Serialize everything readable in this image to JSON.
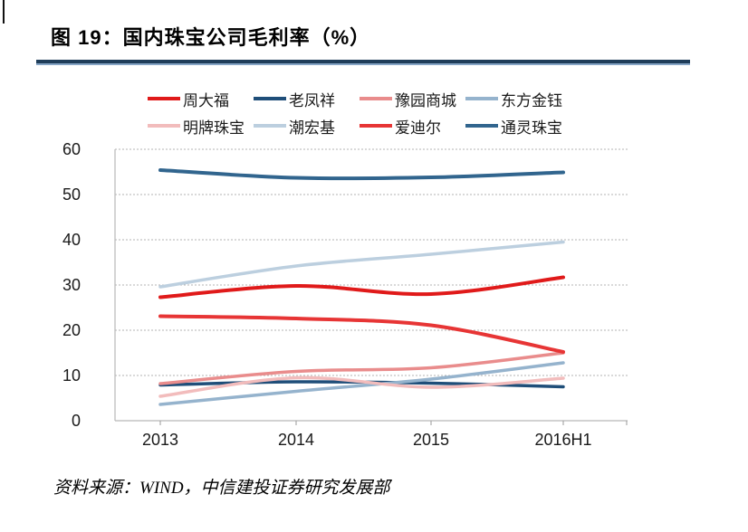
{
  "figure": {
    "title": "图 19：国内珠宝公司毛利率（%）",
    "source": "资料来源：WIND，中信建投证券研究发展部"
  },
  "colors": {
    "title_rule": "#1f3d5a",
    "title_rule_edge": "#86a5c6",
    "gridline": "#b3b3b3",
    "axis": "#b7b7b7",
    "tick": "#999999",
    "tick_label": "#1a1a1a"
  },
  "chart_data": {
    "type": "line",
    "smoothed": true,
    "title": "国内珠宝公司毛利率（%）",
    "categories": [
      "2013",
      "2014",
      "2015",
      "2016H1"
    ],
    "series": [
      {
        "id": "zhoudafu",
        "name": "周大福",
        "color": "#e01a1a",
        "width": 4,
        "values": [
          27.3,
          29.8,
          28.0,
          31.7
        ]
      },
      {
        "id": "laofengxiang",
        "name": "老凤祥",
        "color": "#1f4e79",
        "width": 3.5,
        "values": [
          7.9,
          8.6,
          8.3,
          7.5
        ]
      },
      {
        "id": "yuyuanshangcheng",
        "name": "豫园商城",
        "color": "#e98c8c",
        "width": 3.5,
        "values": [
          8.2,
          10.9,
          11.7,
          15.0
        ]
      },
      {
        "id": "dongfangjinyu",
        "name": "东方金钰",
        "color": "#95b3cd",
        "width": 3.5,
        "values": [
          3.6,
          6.5,
          9.2,
          12.8
        ]
      },
      {
        "id": "mingpaizhubao",
        "name": "明牌珠宝",
        "color": "#f2bcbc",
        "width": 3.5,
        "values": [
          5.4,
          9.5,
          7.4,
          9.4
        ]
      },
      {
        "id": "chaohongji",
        "name": "潮宏基",
        "color": "#bccfdf",
        "width": 3.5,
        "values": [
          29.6,
          34.2,
          36.8,
          39.5
        ]
      },
      {
        "id": "aidier",
        "name": "爱迪尔",
        "color": "#e73535",
        "width": 4,
        "values": [
          23.1,
          22.6,
          21.1,
          15.2
        ]
      },
      {
        "id": "tonglingzhubao",
        "name": "通灵珠宝",
        "color": "#31658e",
        "width": 4,
        "values": [
          55.4,
          53.7,
          53.8,
          54.9
        ]
      }
    ],
    "ylim": [
      0,
      60
    ],
    "y_ticks": [
      0,
      10,
      20,
      30,
      40,
      50,
      60
    ],
    "grid": "horizontal-dashed",
    "legend_position": "top",
    "legend_rows": [
      [
        "zhoudafu",
        "laofengxiang",
        "yuyuanshangcheng",
        "dongfangjinyu"
      ],
      [
        "mingpaizhubao",
        "chaohongji",
        "aidier",
        "tonglingzhubao"
      ]
    ]
  }
}
